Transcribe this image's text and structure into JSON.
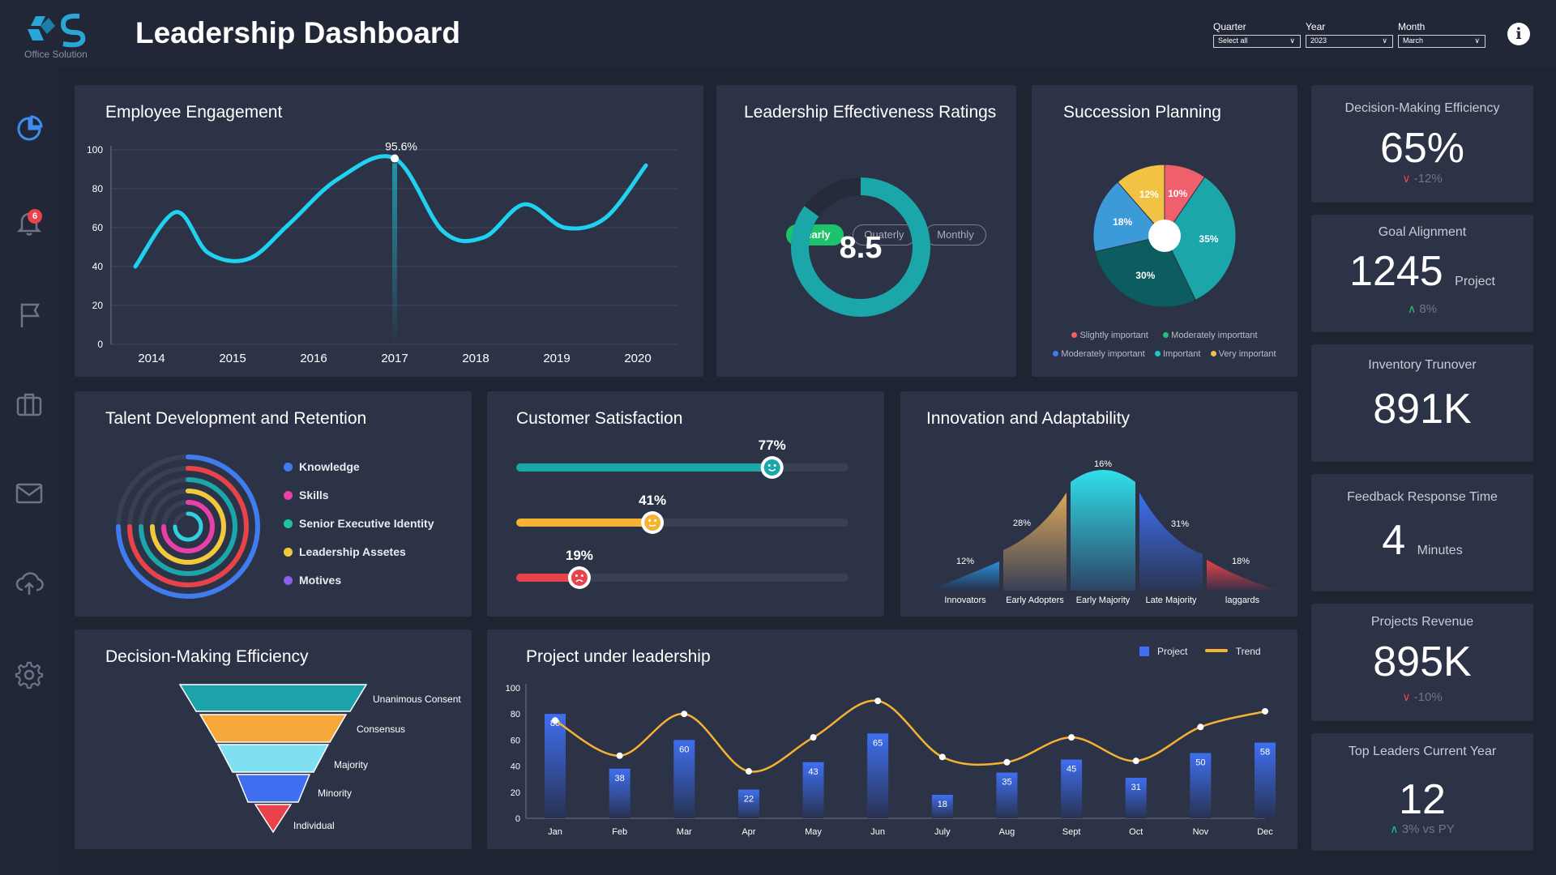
{
  "app": {
    "title": "Leadership Dashboard",
    "logo_subtitle": "Office Solution"
  },
  "filters": [
    {
      "label": "Quarter",
      "value": "Select all"
    },
    {
      "label": "Year",
      "value": "2023"
    },
    {
      "label": "Month",
      "value": "March"
    }
  ],
  "sidebar": {
    "icons": [
      "pie-chart-icon",
      "bell-icon",
      "flag-icon",
      "briefcase-icon",
      "mail-icon",
      "cloud-upload-icon",
      "gear-icon"
    ],
    "notification_count": "6"
  },
  "engagement": {
    "title": "Employee Engagement",
    "peak_label": "95.6%",
    "chart_data": {
      "type": "line",
      "title": "Employee Engagement",
      "x_ticks": [
        "2014",
        "2015",
        "2016",
        "2017",
        "2018",
        "2019",
        "2020"
      ],
      "y_ticks": [
        "100",
        "80",
        "60",
        "40",
        "20",
        "0"
      ],
      "ylim": [
        0,
        100
      ],
      "x": [
        2013.8,
        2014.3,
        2014.7,
        2015.2,
        2015.7,
        2016.3,
        2017.0,
        2017.6,
        2018.1,
        2018.6,
        2019.1,
        2019.6,
        2020.1
      ],
      "y": [
        40,
        68,
        47,
        44,
        62,
        85,
        95.6,
        58,
        55,
        72,
        60,
        65,
        92
      ],
      "annotation": {
        "x": 2017.0,
        "y": 95.6,
        "label": "95.6%"
      },
      "grid": true
    }
  },
  "leadership_ratings": {
    "title": "Leadership Effectiveness Ratings",
    "tabs": [
      "Yearly",
      "Quaterly",
      "Monthly"
    ],
    "active_tab": "Yearly",
    "value": "8.5",
    "chart_data": {
      "type": "pie",
      "values": [
        8.5
      ],
      "max": 10,
      "labels": [
        "8.5"
      ]
    }
  },
  "succession": {
    "title": "Succession Planning",
    "chart_data": {
      "type": "pie",
      "labels": [
        "10%",
        "35%",
        "30%",
        "18%",
        "12%"
      ],
      "values": [
        10,
        35,
        30,
        18,
        12
      ],
      "colors": [
        "#ef5f6c",
        "#1ba7aa",
        "#0b5d5f",
        "#3d9ad8",
        "#f2c244"
      ]
    },
    "legend": [
      {
        "label": "Slightly important",
        "color": "#ef5f6c"
      },
      {
        "label": "Moderately importtant",
        "color": "#21c07a"
      },
      {
        "label": "Moderately important",
        "color": "#3f7cf0"
      },
      {
        "label": "Important",
        "color": "#19c8cf"
      },
      {
        "label": "Very important",
        "color": "#f2c244"
      }
    ]
  },
  "kpis": [
    {
      "title": "Decision-Making Efficiency",
      "value": "65%",
      "sub": "-12%",
      "trend": "down"
    },
    {
      "title": "Goal Alignment",
      "value": "1245",
      "unit": "Project",
      "sub": "8%",
      "trend": "up"
    },
    {
      "title": "Inventory Trunover",
      "value": "891K",
      "sub": "",
      "trend": "none"
    },
    {
      "title": "Feedback Response Time",
      "value": "4",
      "unit": "Minutes",
      "sub": "",
      "trend": "none"
    },
    {
      "title": "Projects Revenue",
      "value": "895K",
      "sub": "-10%",
      "trend": "down"
    },
    {
      "title": "Top Leaders Current Year",
      "value": "12",
      "sub": "3% vs PY",
      "trend": "up"
    }
  ],
  "talent": {
    "title": "Talent Development and Retention",
    "legend": [
      {
        "label": "Knowledge",
        "color": "#3f7cf0"
      },
      {
        "label": "Skills",
        "color": "#e93fa8"
      },
      {
        "label": "Senior Executive Identity",
        "color": "#21c2a1"
      },
      {
        "label": "Leadership Assetes",
        "color": "#f2c93d"
      },
      {
        "label": "Motives",
        "color": "#8c5ef0"
      }
    ],
    "chart_data": {
      "type": "pie",
      "labels": [
        "Knowledge",
        "Skills",
        "Senior Executive Identity",
        "Leadership Assetes",
        "Motives"
      ],
      "values": [
        0.75,
        0.7,
        0.75,
        0.6,
        0.55
      ],
      "colors": [
        "#3f7cf0",
        "#e8434a",
        "#1ba7aa",
        "#f2c93d",
        "#30d0e0"
      ]
    }
  },
  "customer_satisfaction": {
    "title": "Customer Satisfaction",
    "bars": [
      {
        "label": "77%",
        "value": 77,
        "color": "#19a7a8",
        "face": "happy"
      },
      {
        "label": "41%",
        "value": 41,
        "color": "#f6b233",
        "face": "neutral"
      },
      {
        "label": "19%",
        "value": 19,
        "color": "#e8434a",
        "face": "sad"
      }
    ]
  },
  "innovation": {
    "title": "Innovation and Adaptability",
    "chart_data": {
      "type": "area",
      "categories": [
        "Innovators",
        "Early Adopters",
        "Early Majority",
        "Late Majority",
        "laggards"
      ],
      "values": [
        12,
        28,
        16,
        31,
        18
      ],
      "labels": [
        "12%",
        "28%",
        "16%",
        "31%",
        "18%"
      ]
    }
  },
  "decision_funnel": {
    "title": "Decision-Making Efficiency",
    "stages": [
      {
        "label": "Unanimous Consent",
        "color": "#1ba3a9"
      },
      {
        "label": "Consensus",
        "color": "#f6a83a"
      },
      {
        "label": "Majority",
        "color": "#7ee0f0"
      },
      {
        "label": "Minority",
        "color": "#3f6ff0"
      },
      {
        "label": "Individual",
        "color": "#e8434a"
      }
    ]
  },
  "projects": {
    "title": "Project under leadership",
    "legend": [
      {
        "label": "Project",
        "color": "#3f6ff0"
      },
      {
        "label": "Trend",
        "color": "#f6b233"
      }
    ],
    "chart_data": {
      "type": "bar",
      "categories": [
        "Jan",
        "Feb",
        "Mar",
        "Apr",
        "May",
        "Jun",
        "July",
        "Aug",
        "Sept",
        "Oct",
        "Nov",
        "Dec"
      ],
      "series": [
        {
          "name": "Project",
          "values": [
            80,
            38,
            60,
            22,
            43,
            65,
            18,
            35,
            45,
            31,
            50,
            58
          ]
        },
        {
          "name": "Trend",
          "values": [
            75,
            48,
            80,
            36,
            62,
            90,
            47,
            43,
            62,
            44,
            70,
            82
          ]
        }
      ],
      "y_ticks": [
        "100",
        "80",
        "60",
        "40",
        "20",
        "0"
      ],
      "ylim": [
        0,
        100
      ]
    }
  }
}
